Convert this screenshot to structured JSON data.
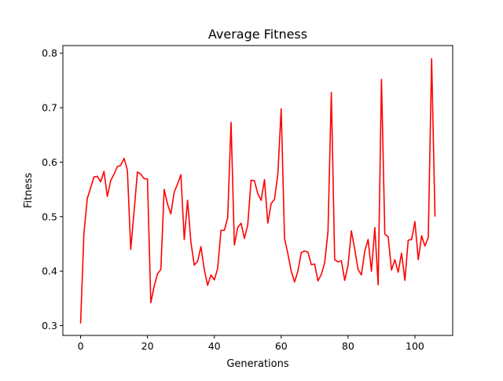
{
  "chart_data": {
    "type": "line",
    "title": "Average Fitness",
    "xlabel": "Generations",
    "ylabel": "Fitness",
    "xlim": [
      -5.3,
      111.3
    ],
    "ylim": [
      0.282,
      0.814
    ],
    "xticks": [
      0,
      20,
      40,
      60,
      80,
      100
    ],
    "yticks": [
      0.3,
      0.4,
      0.5,
      0.6,
      0.7,
      0.8
    ],
    "xtick_labels": [
      "0",
      "20",
      "40",
      "60",
      "80",
      "100"
    ],
    "ytick_labels": [
      "0.3",
      "0.4",
      "0.5",
      "0.6",
      "0.7",
      "0.8"
    ],
    "grid": false,
    "legend": "none",
    "line_color": "#ff0000",
    "series": [
      {
        "values": [
          0.305,
          0.47,
          0.533,
          0.553,
          0.573,
          0.574,
          0.564,
          0.583,
          0.537,
          0.566,
          0.578,
          0.592,
          0.594,
          0.607,
          0.585,
          0.44,
          0.51,
          0.582,
          0.578,
          0.57,
          0.569,
          0.342,
          0.372,
          0.395,
          0.403,
          0.55,
          0.523,
          0.505,
          0.545,
          0.56,
          0.577,
          0.458,
          0.53,
          0.453,
          0.411,
          0.418,
          0.445,
          0.403,
          0.374,
          0.393,
          0.384,
          0.405,
          0.475,
          0.475,
          0.498,
          0.673,
          0.448,
          0.48,
          0.488,
          0.46,
          0.485,
          0.567,
          0.566,
          0.542,
          0.53,
          0.568,
          0.488,
          0.524,
          0.532,
          0.578,
          0.698,
          0.46,
          0.432,
          0.4,
          0.38,
          0.4,
          0.434,
          0.437,
          0.435,
          0.412,
          0.413,
          0.382,
          0.394,
          0.415,
          0.473,
          0.728,
          0.421,
          0.417,
          0.419,
          0.383,
          0.411,
          0.474,
          0.44,
          0.403,
          0.393,
          0.437,
          0.458,
          0.4,
          0.48,
          0.375,
          0.752,
          0.468,
          0.463,
          0.402,
          0.421,
          0.398,
          0.433,
          0.383,
          0.457,
          0.458,
          0.491,
          0.421,
          0.465,
          0.446,
          0.462,
          0.79,
          0.501
        ]
      }
    ]
  }
}
